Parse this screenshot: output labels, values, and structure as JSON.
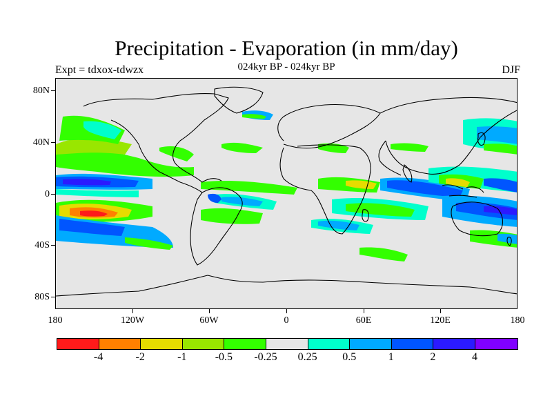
{
  "title": "Precipitation - Evaporation (in mm/day)",
  "subtitle": "024kyr BP - 024kyr BP",
  "left_label": "Expt = tdxox-tdwzx",
  "right_label": "DJF",
  "map": {
    "background_color": "#e6e6e6",
    "lat_labels": [
      "80N",
      "40N",
      "0",
      "40S",
      "80S"
    ],
    "lon_labels": [
      "180",
      "120W",
      "60W",
      "0",
      "60E",
      "120E",
      "180"
    ]
  },
  "legend": {
    "colors": [
      "#ff1a1a",
      "#ff8000",
      "#e6dc00",
      "#99e600",
      "#33ff00",
      "#e6e6e6",
      "#00ffcc",
      "#00aaff",
      "#0055ff",
      "#2b1aff",
      "#8000ff"
    ],
    "labels": [
      "-4",
      "-2",
      "-1",
      "-0.5",
      "-0.25",
      "0.25",
      "0.5",
      "1",
      "2",
      "4"
    ]
  }
}
